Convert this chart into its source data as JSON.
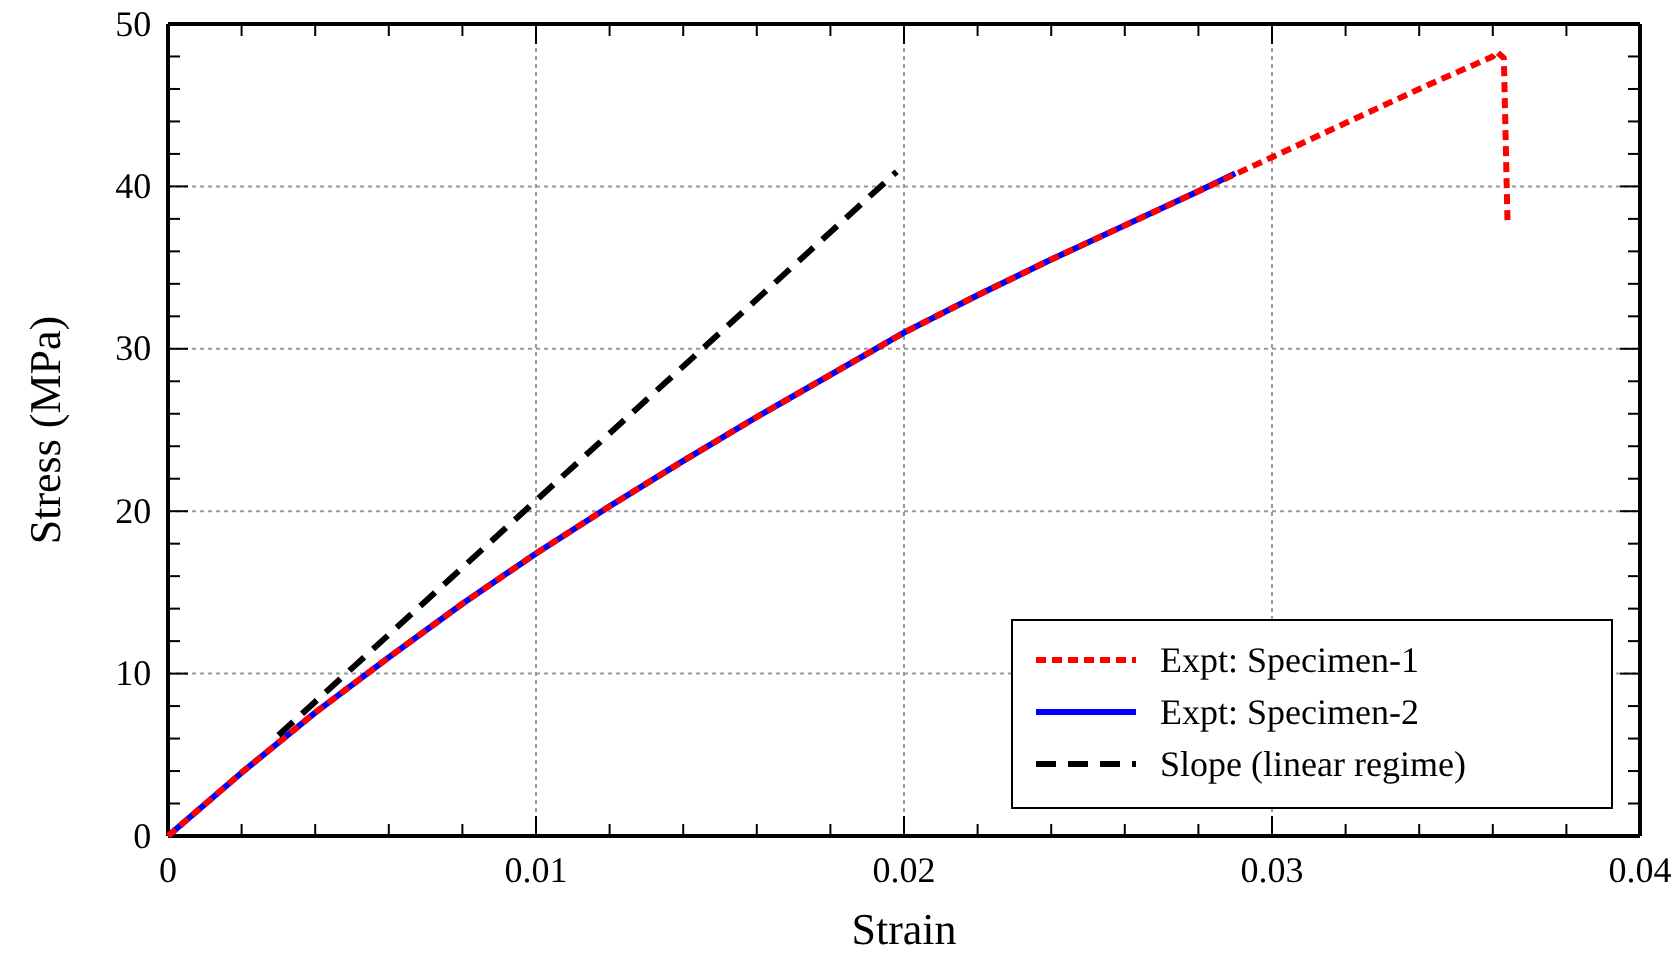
{
  "chart_data": {
    "type": "line",
    "xlabel": "Strain",
    "ylabel": "Stress (MPa)",
    "xlim": [
      0,
      0.04
    ],
    "ylim": [
      0,
      50
    ],
    "xticks": [
      0,
      {
        "value": 0.002,
        "label": null
      },
      {
        "value": 0.004,
        "label": null
      },
      {
        "value": 0.006,
        "label": null
      },
      {
        "value": 0.008,
        "label": null
      },
      0.01,
      {
        "value": 0.012,
        "label": null
      },
      {
        "value": 0.014,
        "label": null
      },
      {
        "value": 0.016,
        "label": null
      },
      {
        "value": 0.018,
        "label": null
      },
      0.02,
      {
        "value": 0.022,
        "label": null
      },
      {
        "value": 0.024,
        "label": null
      },
      {
        "value": 0.026,
        "label": null
      },
      {
        "value": 0.028,
        "label": null
      },
      0.03,
      {
        "value": 0.032,
        "label": null
      },
      {
        "value": 0.034,
        "label": null
      },
      {
        "value": 0.036,
        "label": null
      },
      {
        "value": 0.038,
        "label": null
      },
      0.04
    ],
    "yticks": [
      0,
      {
        "value": 2,
        "label": null
      },
      {
        "value": 4,
        "label": null
      },
      {
        "value": 6,
        "label": null
      },
      {
        "value": 8,
        "label": null
      },
      10,
      {
        "value": 12,
        "label": null
      },
      {
        "value": 14,
        "label": null
      },
      {
        "value": 16,
        "label": null
      },
      {
        "value": 18,
        "label": null
      },
      20,
      {
        "value": 22,
        "label": null
      },
      {
        "value": 24,
        "label": null
      },
      {
        "value": 26,
        "label": null
      },
      {
        "value": 28,
        "label": null
      },
      30,
      {
        "value": 32,
        "label": null
      },
      {
        "value": 34,
        "label": null
      },
      {
        "value": 36,
        "label": null
      },
      {
        "value": 38,
        "label": null
      },
      40,
      {
        "value": 42,
        "label": null
      },
      {
        "value": 44,
        "label": null
      },
      {
        "value": 46,
        "label": null
      },
      {
        "value": 48,
        "label": null
      },
      50
    ],
    "grid": true,
    "legend": "bottom right",
    "marker": "none",
    "series": [
      {
        "name": "Expt: Specimen-1",
        "color": "#ff0000",
        "line_style": "dotted",
        "x": [
          0,
          0.002,
          0.004,
          0.006,
          0.008,
          0.01,
          0.012,
          0.014,
          0.016,
          0.018,
          0.02,
          0.022,
          0.024,
          0.026,
          0.028,
          0.03,
          0.032,
          0.034,
          0.036,
          0.0361,
          0.0363,
          0.0364
        ],
        "values": [
          0,
          3.9,
          7.6,
          11.0,
          14.3,
          17.4,
          20.3,
          23.1,
          25.8,
          28.4,
          31.0,
          33.3,
          35.5,
          37.6,
          39.7,
          41.8,
          43.9,
          46.0,
          48.0,
          48.3,
          47.9,
          37.8
        ]
      },
      {
        "name": "Expt: Specimen-2",
        "color": "#0000ff",
        "line_style": "solid",
        "x": [
          0,
          0.002,
          0.004,
          0.006,
          0.008,
          0.01,
          0.012,
          0.014,
          0.016,
          0.018,
          0.02,
          0.022,
          0.024,
          0.026,
          0.028,
          0.029
        ],
        "values": [
          0,
          3.9,
          7.6,
          11.0,
          14.3,
          17.4,
          20.3,
          23.1,
          25.8,
          28.4,
          31.0,
          33.3,
          35.5,
          37.6,
          39.7,
          40.8
        ]
      },
      {
        "name": "Slope (linear regime)",
        "color": "#000000",
        "line_style": "dashed",
        "x": [
          0.003,
          0.0198
        ],
        "values": [
          6.2,
          40.9
        ]
      }
    ]
  }
}
